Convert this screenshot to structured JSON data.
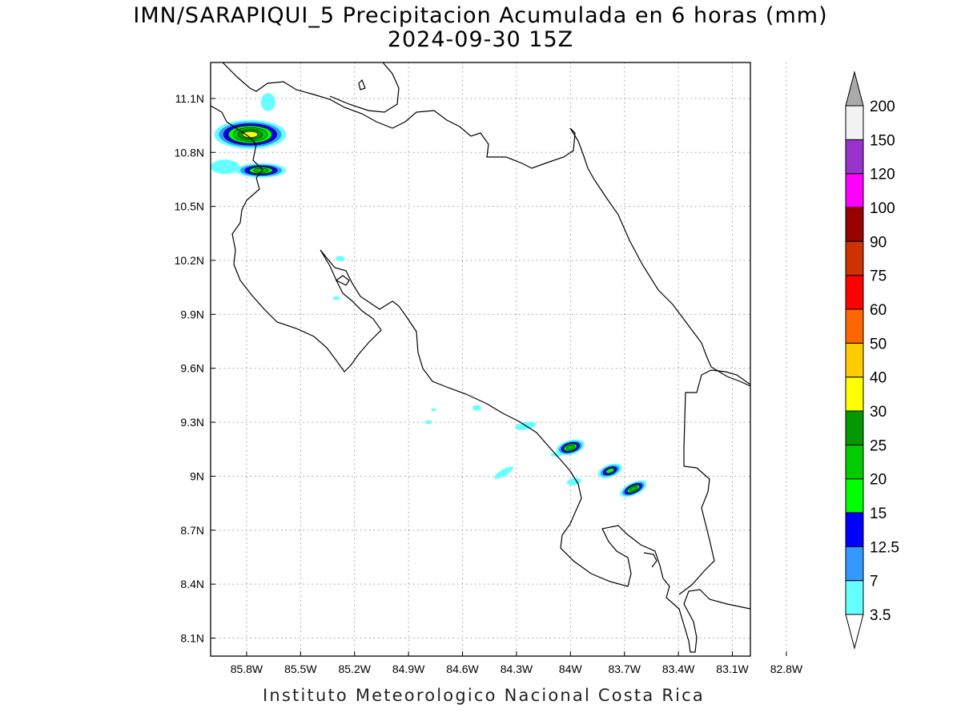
{
  "title": {
    "line1": "IMN/SARAPIQUI_5 Precipitacion Acumulada en 6 horas (mm)",
    "line2": "2024-09-30 15Z"
  },
  "footer": "Instituto Meteorologico Nacional Costa Rica",
  "map": {
    "lon_range": [
      -86.0,
      -83.0
    ],
    "lat_range": [
      8.0,
      11.3
    ],
    "lon_ticks": [
      {
        "value": -85.8,
        "label": "85.8W"
      },
      {
        "value": -85.5,
        "label": "85.5W"
      },
      {
        "value": -85.2,
        "label": "85.2W"
      },
      {
        "value": -84.9,
        "label": "84.9W"
      },
      {
        "value": -84.6,
        "label": "84.6W"
      },
      {
        "value": -84.3,
        "label": "84.3W"
      },
      {
        "value": -84.0,
        "label": "84W"
      },
      {
        "value": -83.7,
        "label": "83.7W"
      },
      {
        "value": -83.4,
        "label": "83.4W"
      },
      {
        "value": -83.1,
        "label": "83.1W"
      },
      {
        "value": -82.8,
        "label": "82.8W"
      }
    ],
    "lat_ticks": [
      {
        "value": 11.1,
        "label": "11.1N"
      },
      {
        "value": 10.8,
        "label": "10.8N"
      },
      {
        "value": 10.5,
        "label": "10.5N"
      },
      {
        "value": 10.2,
        "label": "10.2N"
      },
      {
        "value": 9.9,
        "label": "9.9N"
      },
      {
        "value": 9.6,
        "label": "9.6N"
      },
      {
        "value": 9.3,
        "label": "9.3N"
      },
      {
        "value": 9.0,
        "label": "9N"
      },
      {
        "value": 8.7,
        "label": "8.7N"
      },
      {
        "value": 8.4,
        "label": "8.4N"
      },
      {
        "value": 8.1,
        "label": "8.1N"
      }
    ],
    "grid": true
  },
  "colorbar": {
    "levels": [
      "3.5",
      "7",
      "12.5",
      "15",
      "20",
      "25",
      "30",
      "40",
      "50",
      "60",
      "75",
      "90",
      "100",
      "120",
      "150",
      "200"
    ],
    "colors": [
      "#66ffff",
      "#3399ff",
      "#0000ff",
      "#00ff00",
      "#00cc00",
      "#009900",
      "#ffff00",
      "#ffcc00",
      "#ff6600",
      "#ff0000",
      "#cc3300",
      "#990000",
      "#ff00ff",
      "#9933cc",
      "#f2f2f2"
    ],
    "over_color": "#aaaaaa",
    "under_color": "#ffffff"
  },
  "precip_cells": [
    {
      "lon": -85.78,
      "lat": 10.9,
      "rx": 0.2,
      "ry": 0.08,
      "level": 7,
      "rot": 0
    },
    {
      "lon": -85.72,
      "lat": 10.7,
      "rx": 0.14,
      "ry": 0.04,
      "level": 5,
      "rot": 0
    },
    {
      "lon": -84.0,
      "lat": 9.16,
      "rx": 0.08,
      "ry": 0.04,
      "level": 5,
      "rot": -15
    },
    {
      "lon": -83.78,
      "lat": 9.03,
      "rx": 0.07,
      "ry": 0.035,
      "level": 4,
      "rot": -20
    },
    {
      "lon": -83.65,
      "lat": 8.93,
      "rx": 0.08,
      "ry": 0.035,
      "level": 5,
      "rot": -25
    },
    {
      "lon": -84.25,
      "lat": 9.28,
      "rx": 0.06,
      "ry": 0.02,
      "level": 1,
      "rot": -10
    },
    {
      "lon": -84.08,
      "lat": 9.12,
      "rx": 0.03,
      "ry": 0.012,
      "level": 1,
      "rot": 0
    },
    {
      "lon": -84.37,
      "lat": 9.02,
      "rx": 0.06,
      "ry": 0.018,
      "level": 1,
      "rot": -30
    },
    {
      "lon": -83.98,
      "lat": 8.97,
      "rx": 0.04,
      "ry": 0.02,
      "level": 1,
      "rot": -10
    },
    {
      "lon": -84.52,
      "lat": 9.38,
      "rx": 0.025,
      "ry": 0.015,
      "level": 1,
      "rot": 0
    },
    {
      "lon": -84.79,
      "lat": 9.3,
      "rx": 0.02,
      "ry": 0.01,
      "level": 1,
      "rot": 0
    },
    {
      "lon": -84.76,
      "lat": 9.37,
      "rx": 0.015,
      "ry": 0.008,
      "level": 1,
      "rot": 0
    },
    {
      "lon": -85.28,
      "lat": 10.21,
      "rx": 0.025,
      "ry": 0.015,
      "level": 1,
      "rot": 0
    },
    {
      "lon": -85.3,
      "lat": 9.99,
      "rx": 0.02,
      "ry": 0.01,
      "level": 1,
      "rot": 0
    },
    {
      "lon": -85.92,
      "lat": 10.72,
      "rx": 0.08,
      "ry": 0.04,
      "level": 1,
      "rot": 0
    },
    {
      "lon": -85.68,
      "lat": 11.08,
      "rx": 0.04,
      "ry": 0.05,
      "level": 1,
      "rot": 0
    }
  ]
}
